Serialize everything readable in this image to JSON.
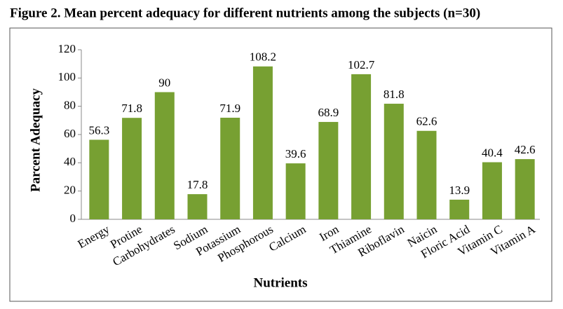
{
  "chart_data": {
    "type": "bar",
    "title": "Figure 2. Mean percent adequacy for different nutrients among the subjects (n=30)",
    "x_label": "Nutrients",
    "y_label": "Parcent Adequacy",
    "categories": [
      "Energy",
      "Protine",
      "Carbohydrates",
      "Sodium",
      "Potassium",
      "Phosphorous",
      "Calcium",
      "Iron",
      "Thiamine",
      "Riboflavin",
      "Naicin",
      "Floric Acid",
      "Vitamin C",
      "Vitamin A"
    ],
    "values": [
      56.3,
      71.8,
      90,
      17.8,
      71.9,
      108.2,
      39.6,
      68.9,
      102.7,
      81.8,
      62.6,
      13.9,
      40.4,
      42.6
    ],
    "color": "#77a032",
    "ylim": [
      0,
      120
    ],
    "yticks": [
      0,
      20,
      40,
      60,
      80,
      100,
      120
    ],
    "grid": false
  }
}
